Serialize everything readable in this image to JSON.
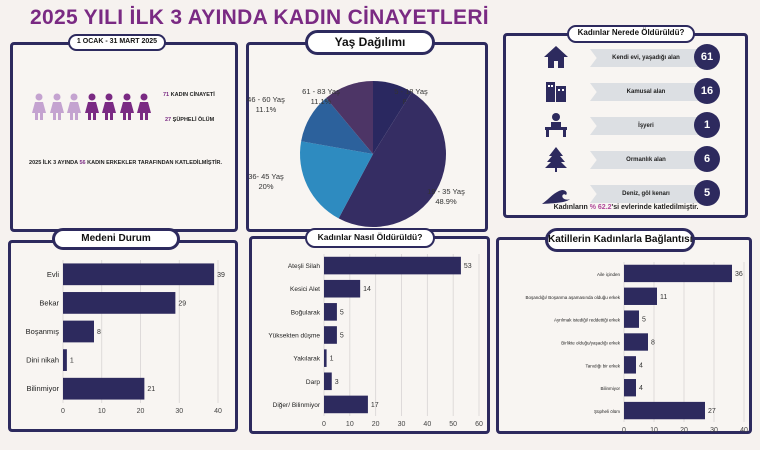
{
  "title": "2025 YILI İLK 3 AYINDA KADIN CİNAYETLERİ",
  "summary": {
    "period": "1 OCAK - 31 MART  2025",
    "murders_num": "71",
    "murders_label": "KADIN CİNAYETİ",
    "suspicious_num": "27",
    "suspicious_label": "ŞÜPHELİ ÖLÜM",
    "sentence_pre": "2025 İLK 3 AYINDA",
    "sentence_num": "56",
    "sentence_post": "KADIN ERKEKLER TARAFINDAN KATLEDİLMİŞTİR.",
    "figure_colors": {
      "light": "#c4a3d0",
      "dark": "#7a2a83"
    },
    "light_figures": 3,
    "dark_figures": 4
  },
  "locations": {
    "title": "Kadınlar Nerede Öldürüldü?",
    "items": [
      {
        "label": "Kendi evi, yaşadığı alan",
        "value": "61",
        "icon": "house-icon"
      },
      {
        "label": "Kamusal alan",
        "value": "16",
        "icon": "buildings-icon"
      },
      {
        "label": "İşyeri",
        "value": "1",
        "icon": "office-desk-icon"
      },
      {
        "label": "Ormanlık alan",
        "value": "6",
        "icon": "tree-icon"
      },
      {
        "label": "Deniz, göl kenarı",
        "value": "5",
        "icon": "wave-icon"
      }
    ],
    "footer_pre": "Kadınların",
    "footer_pct": "% 62.2",
    "footer_post": "'si evlerinde katledilmiştir."
  },
  "chart_data": [
    {
      "type": "pie",
      "title": "Yaş Dağılımı",
      "categories": [
        "5 - 18 Yaş",
        "19 - 35 Yaş",
        "36- 45 Yaş",
        "46 - 60 Yaş",
        "61 - 83 Yaş"
      ],
      "values": [
        8.9,
        48.9,
        20,
        11.1,
        11.1
      ],
      "labels": [
        "8.9%",
        "48.9%",
        "20%",
        "11.1%",
        "11.1%"
      ],
      "colors": [
        "#2a2860",
        "#352d63",
        "#2e8bc0",
        "#2c619c",
        "#4d3566"
      ]
    },
    {
      "type": "bar",
      "orientation": "horizontal",
      "title": "Medeni Durum",
      "categories": [
        "Evli",
        "Bekar",
        "Boşanmış",
        "Dini nikah",
        "Bilinmiyor"
      ],
      "values": [
        39,
        29,
        8,
        1,
        21
      ],
      "xlim": [
        0,
        40
      ],
      "ticks": [
        "0",
        "10",
        "20",
        "30",
        "40"
      ],
      "grid": true,
      "color": "#2d2a5e"
    },
    {
      "type": "bar",
      "orientation": "horizontal",
      "title": "Kadınlar Nasıl Öldürüldü?",
      "categories": [
        "Ateşli Silah",
        "Kesici Alet",
        "Boğularak",
        "Yüksekten düşme",
        "Yakılarak",
        "Darp",
        "Diğer/ Bilinmiyor"
      ],
      "values": [
        53,
        14,
        5,
        5,
        1,
        3,
        17
      ],
      "xlim": [
        0,
        60
      ],
      "ticks": [
        "0",
        "10",
        "20",
        "30",
        "40",
        "50",
        "60"
      ],
      "grid": true,
      "color": "#2d2a5e"
    },
    {
      "type": "bar",
      "orientation": "horizontal",
      "title": "Katillerin Kadınlarla Bağlantısı",
      "categories": [
        "Aile içinden",
        "Boşandığı/ Boşanma aşamasında olduğu erkek",
        "Ayrılmak istediği/ reddettiği erkek",
        "Birlikte olduğu/yaşadığı erkek",
        "Tanıdığı bir erkek",
        "Bilinmiyor",
        "Şüpheli ölüm"
      ],
      "values": [
        36,
        11,
        5,
        8,
        4,
        4,
        27
      ],
      "xlim": [
        0,
        40
      ],
      "ticks": [
        "0",
        "10",
        "20",
        "30",
        "40"
      ],
      "grid": true,
      "color": "#2d2a5e"
    }
  ]
}
